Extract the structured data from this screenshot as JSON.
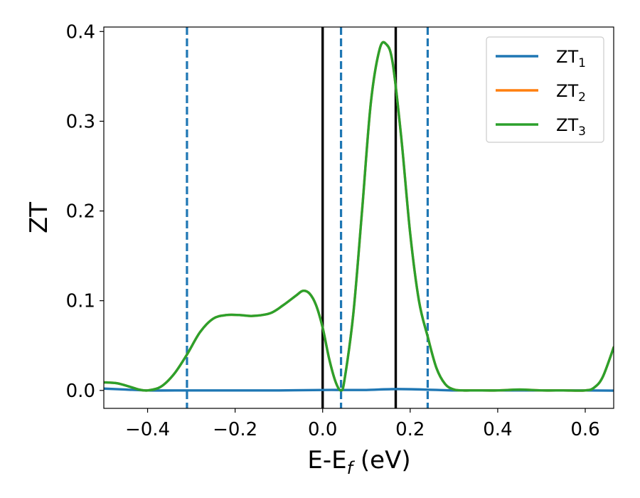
{
  "chart_data": {
    "type": "line",
    "xlabel": "E-E",
    "xlabel_sub": "f",
    "xlabel_unit": " (eV)",
    "ylabel": "ZT",
    "xlim": [
      -0.5,
      0.665
    ],
    "ylim": [
      -0.02,
      0.405
    ],
    "x_ticks": [
      -0.4,
      -0.2,
      0.0,
      0.2,
      0.4,
      0.6
    ],
    "x_tick_labels": [
      "−0.4",
      "−0.2",
      "0.0",
      "0.2",
      "0.4",
      "0.6"
    ],
    "y_ticks": [
      0.0,
      0.1,
      0.2,
      0.3,
      0.4
    ],
    "y_tick_labels": [
      "0.0",
      "0.1",
      "0.2",
      "0.3",
      "0.4"
    ],
    "grid": false,
    "legend_position": "top-right",
    "series": [
      {
        "name": "ZT",
        "subscript": "1",
        "color": "#1f77b4",
        "x": [
          -0.5,
          -0.45,
          -0.4,
          -0.3,
          -0.2,
          -0.1,
          0.0,
          0.05,
          0.1,
          0.17,
          0.25,
          0.3,
          0.4,
          0.5,
          0.6,
          0.665
        ],
        "y": [
          0.002,
          0.001,
          0.0,
          0.0,
          0.0,
          0.0,
          0.0005,
          0.0005,
          0.0005,
          0.0015,
          0.0007,
          0.0,
          0.0,
          0.0,
          0.0,
          -0.0002
        ]
      },
      {
        "name": "ZT",
        "subscript": "2",
        "color": "#ff7f0e",
        "x": [
          -0.5,
          -0.47,
          -0.44,
          -0.42,
          -0.4,
          -0.37,
          -0.34,
          -0.31,
          -0.28,
          -0.25,
          -0.22,
          -0.19,
          -0.16,
          -0.12,
          -0.09,
          -0.06,
          -0.045,
          -0.03,
          -0.015,
          0.0,
          0.015,
          0.03,
          0.042,
          0.05,
          0.07,
          0.09,
          0.11,
          0.13,
          0.145,
          0.16,
          0.18,
          0.2,
          0.22,
          0.24,
          0.26,
          0.28,
          0.3,
          0.32,
          0.35,
          0.4,
          0.45,
          0.5,
          0.55,
          0.6,
          0.62,
          0.64,
          0.665
        ],
        "y": [
          0.009,
          0.008,
          0.004,
          0.001,
          0.0,
          0.004,
          0.018,
          0.04,
          0.065,
          0.08,
          0.084,
          0.084,
          0.083,
          0.086,
          0.095,
          0.106,
          0.111,
          0.108,
          0.095,
          0.07,
          0.035,
          0.009,
          0.0,
          0.012,
          0.085,
          0.2,
          0.32,
          0.38,
          0.386,
          0.365,
          0.28,
          0.175,
          0.1,
          0.06,
          0.025,
          0.007,
          0.001,
          0.0,
          0.0,
          0.0,
          0.001,
          0.0,
          0.0,
          0.0,
          0.003,
          0.015,
          0.048
        ]
      },
      {
        "name": "ZT",
        "subscript": "3",
        "color": "#2ca02c",
        "x": [
          -0.5,
          -0.47,
          -0.44,
          -0.42,
          -0.4,
          -0.37,
          -0.34,
          -0.31,
          -0.28,
          -0.25,
          -0.22,
          -0.19,
          -0.16,
          -0.12,
          -0.09,
          -0.06,
          -0.045,
          -0.03,
          -0.015,
          0.0,
          0.015,
          0.03,
          0.042,
          0.05,
          0.07,
          0.09,
          0.11,
          0.13,
          0.145,
          0.16,
          0.18,
          0.2,
          0.22,
          0.24,
          0.26,
          0.28,
          0.3,
          0.32,
          0.35,
          0.4,
          0.45,
          0.5,
          0.55,
          0.6,
          0.62,
          0.64,
          0.665
        ],
        "y": [
          0.009,
          0.008,
          0.004,
          0.001,
          0.0,
          0.004,
          0.018,
          0.04,
          0.065,
          0.08,
          0.084,
          0.084,
          0.083,
          0.086,
          0.095,
          0.106,
          0.111,
          0.108,
          0.095,
          0.07,
          0.035,
          0.009,
          0.0,
          0.012,
          0.085,
          0.2,
          0.32,
          0.38,
          0.386,
          0.365,
          0.28,
          0.175,
          0.1,
          0.06,
          0.025,
          0.007,
          0.001,
          0.0,
          0.0,
          0.0,
          0.001,
          0.0,
          0.0,
          0.0,
          0.003,
          0.015,
          0.048
        ]
      }
    ],
    "vertical_lines": [
      {
        "x": -0.31,
        "style": "dashed",
        "color": "#1f77b4"
      },
      {
        "x": 0.0,
        "style": "solid",
        "color": "#000000"
      },
      {
        "x": 0.042,
        "style": "dashed",
        "color": "#1f77b4"
      },
      {
        "x": 0.167,
        "style": "solid",
        "color": "#000000"
      },
      {
        "x": 0.24,
        "style": "dashed",
        "color": "#1f77b4"
      }
    ]
  }
}
